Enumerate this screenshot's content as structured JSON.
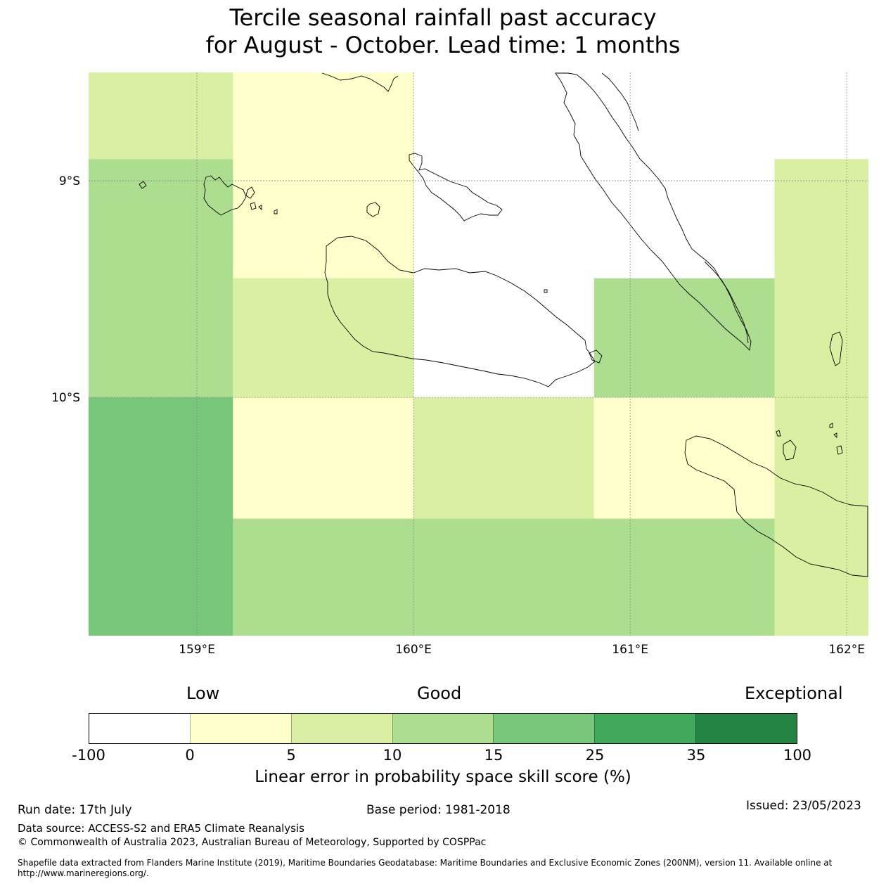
{
  "title": {
    "line1": "Tercile seasonal rainfall past accuracy",
    "line2": "for August - October. Lead time: 1 months"
  },
  "map": {
    "lon_range": [
      158.5,
      162.1
    ],
    "lat_range": [
      -11.1,
      -8.5
    ],
    "lat_labels": [
      "9°S",
      "10°S"
    ],
    "lon_labels": [
      "159°E",
      "160°E",
      "161°E",
      "162°E"
    ],
    "lat_ticks": [
      -9,
      -10
    ],
    "lon_ticks": [
      159,
      160,
      161,
      162
    ],
    "cells": [
      {
        "lon": [
          158.5,
          159.1667
        ],
        "lat": [
          -8.9,
          -8.5
        ],
        "bin": 2
      },
      {
        "lon": [
          159.1667,
          160.0
        ],
        "lat": [
          -9.45,
          -8.5
        ],
        "bin": 1
      },
      {
        "lon": [
          161.6667,
          162.1
        ],
        "lat": [
          -10.0,
          -8.9
        ],
        "bin": 2
      },
      {
        "lon": [
          158.5,
          159.1667
        ],
        "lat": [
          -10.0,
          -8.9
        ],
        "bin": 3
      },
      {
        "lon": [
          159.1667,
          160.0
        ],
        "lat": [
          -10.0,
          -9.45
        ],
        "bin": 2
      },
      {
        "lon": [
          160.8333,
          161.6667
        ],
        "lat": [
          -10.0,
          -9.45
        ],
        "bin": 3
      },
      {
        "lon": [
          158.5,
          159.1667
        ],
        "lat": [
          -11.1,
          -10.0
        ],
        "bin": 4
      },
      {
        "lon": [
          159.1667,
          160.0
        ],
        "lat": [
          -10.56,
          -10.0
        ],
        "bin": 1
      },
      {
        "lon": [
          160.0,
          160.8333
        ],
        "lat": [
          -10.56,
          -10.0
        ],
        "bin": 2
      },
      {
        "lon": [
          160.8333,
          161.6667
        ],
        "lat": [
          -10.56,
          -10.0
        ],
        "bin": 1
      },
      {
        "lon": [
          159.1667,
          161.6667
        ],
        "lat": [
          -11.1,
          -10.56
        ],
        "bin": 3
      },
      {
        "lon": [
          161.6667,
          162.1
        ],
        "lat": [
          -11.1,
          -10.0
        ],
        "bin": 2
      }
    ]
  },
  "colorbar": {
    "head_low": "Low",
    "head_good": "Good",
    "head_exceptional": "Exceptional",
    "colors": [
      "#ffffff",
      "#ffffcc",
      "#d9f0a3",
      "#addd8e",
      "#78c679",
      "#41ab5d",
      "#238443"
    ],
    "ticks": [
      "-100",
      "0",
      "5",
      "10",
      "15",
      "25",
      "35",
      "100"
    ],
    "title": "Linear error in probability space skill score (%)"
  },
  "footer": {
    "run_date": "Run date: 17th July",
    "base_period": "Base period: 1981-2018",
    "issued": "Issued: 23/05/2023",
    "data_source": "Data source: ACCESS-S2 and ERA5 Climate Reanalysis",
    "copyright": "© Commonwealth of Australia 2023, Australian Bureau of Meteorology, Supported by COSPPac",
    "shapefile": "Shapefile data extracted from Flanders Marine Institute (2019), Maritime Boundaries Geodatabase: Maritime Boundaries and Exclusive Economic Zones (200NM), version 11. Available online at http://www.marineregions.org/."
  }
}
